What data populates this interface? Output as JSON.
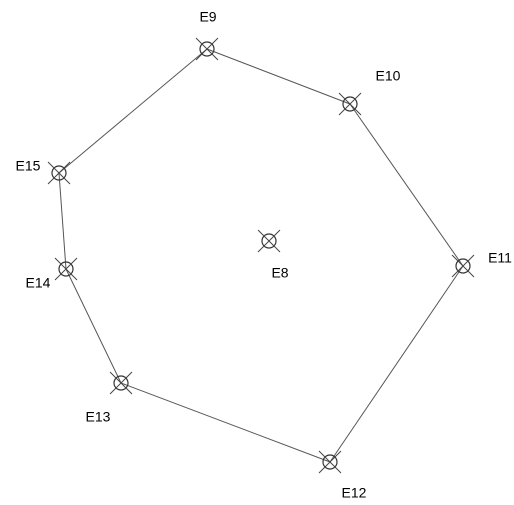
{
  "nodes": [
    {
      "label": "E8"
    },
    {
      "label": "E9"
    },
    {
      "label": "E10"
    },
    {
      "label": "E11"
    },
    {
      "label": "E12"
    },
    {
      "label": "E13"
    },
    {
      "label": "E14"
    },
    {
      "label": "E15"
    }
  ]
}
